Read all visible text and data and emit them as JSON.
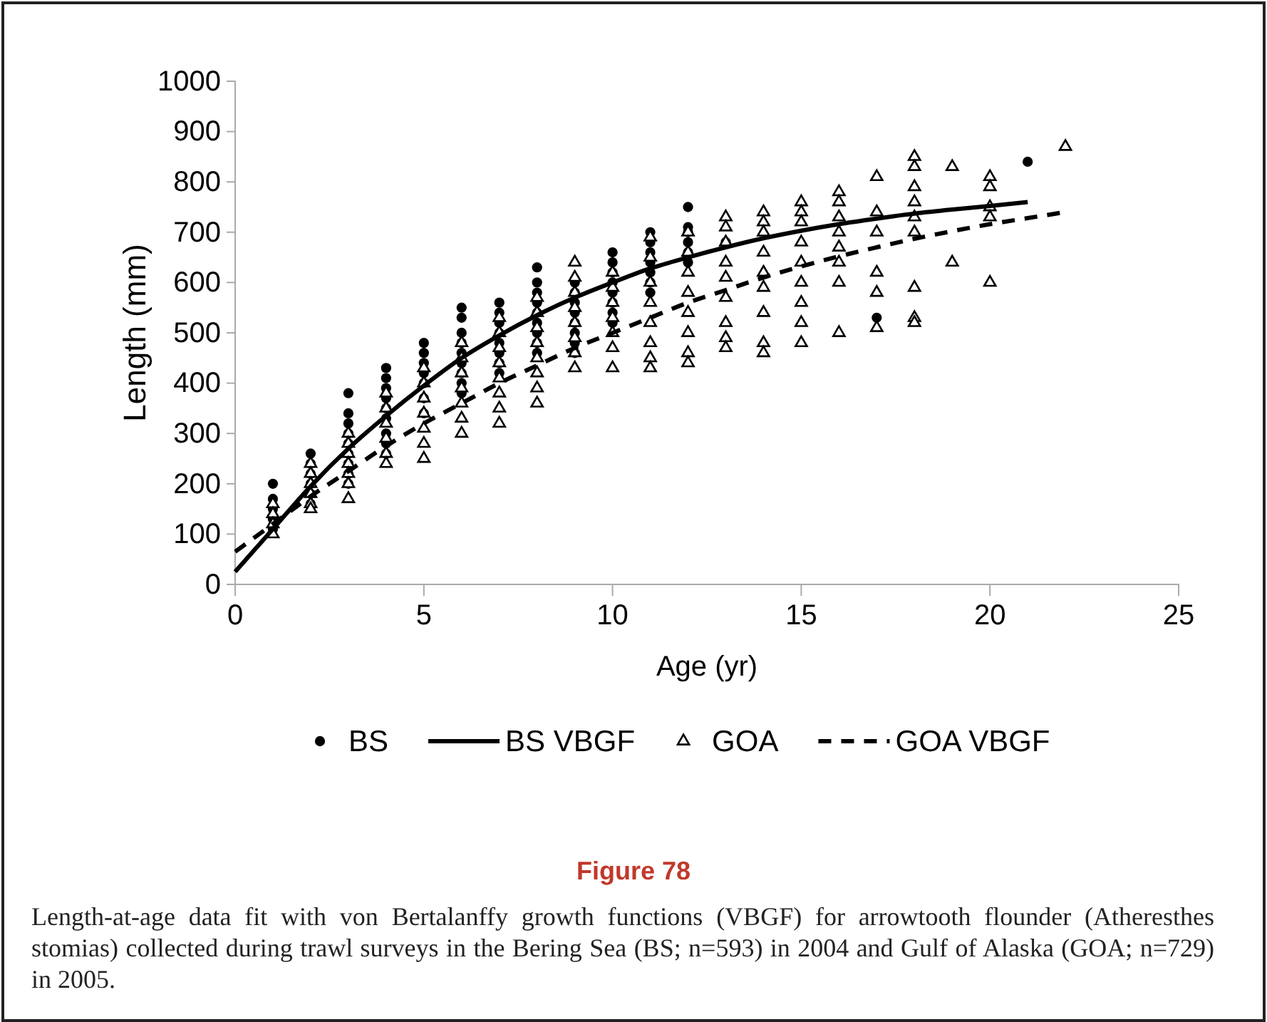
{
  "chart_data": {
    "type": "scatter",
    "title": "Figure 78",
    "xlabel": "Age (yr)",
    "ylabel": "Length (mm)",
    "annotations": [
      "Length-at-age data fit with von Bertalanffy growth functions (VBGF) for arrowtooth flounder (Atheresthes stomias) collected during trawl surveys in the Bering Sea (BS; n=593) in 2004 and Gulf of Alaska (GOA; n=729) in 2005."
    ],
    "xlim": [
      0,
      25
    ],
    "xticks": [
      0,
      5,
      10,
      15,
      20,
      25
    ],
    "ylim": [
      0,
      1000
    ],
    "yticks": [
      0,
      100,
      200,
      300,
      400,
      500,
      600,
      700,
      800,
      900,
      1000
    ],
    "grid": false,
    "legend": "bottom",
    "series": [
      {
        "name": "BS",
        "marker": "circle",
        "color": "#000000",
        "x": [
          1,
          1,
          1,
          1,
          1,
          2,
          2,
          2,
          2,
          2,
          2,
          3,
          3,
          3,
          3,
          3,
          3,
          3,
          3,
          3,
          4,
          4,
          4,
          4,
          4,
          4,
          4,
          4,
          4,
          5,
          5,
          5,
          5,
          5,
          5,
          5,
          6,
          6,
          6,
          6,
          6,
          6,
          6,
          6,
          6,
          7,
          7,
          7,
          7,
          7,
          7,
          7,
          7,
          8,
          8,
          8,
          8,
          8,
          8,
          8,
          8,
          8,
          9,
          9,
          9,
          9,
          9,
          9,
          9,
          9,
          10,
          10,
          10,
          10,
          10,
          10,
          10,
          10,
          11,
          11,
          11,
          11,
          11,
          11,
          11,
          12,
          12,
          12,
          12,
          12,
          12,
          13,
          17,
          21
        ],
        "values": [
          200,
          170,
          150,
          130,
          110,
          260,
          240,
          220,
          200,
          180,
          160,
          380,
          340,
          320,
          300,
          280,
          260,
          240,
          220,
          200,
          430,
          410,
          390,
          370,
          350,
          330,
          300,
          280,
          260,
          480,
          460,
          440,
          420,
          400,
          370,
          340,
          550,
          530,
          500,
          480,
          460,
          440,
          420,
          400,
          380,
          560,
          540,
          520,
          500,
          480,
          460,
          440,
          420,
          630,
          600,
          580,
          560,
          540,
          520,
          500,
          480,
          460,
          600,
          580,
          560,
          540,
          520,
          500,
          480,
          460,
          660,
          640,
          620,
          600,
          580,
          560,
          540,
          520,
          700,
          680,
          660,
          640,
          620,
          600,
          580,
          750,
          710,
          700,
          680,
          660,
          640,
          680,
          530,
          840
        ]
      },
      {
        "name": "BS VBGF",
        "type": "line",
        "marker": "none",
        "line_style": "solid",
        "color": "#000000",
        "x": [
          0,
          1,
          2,
          3,
          4,
          5,
          6,
          7,
          8,
          9,
          10,
          11,
          12,
          13,
          14,
          15,
          16,
          17,
          18,
          19,
          20,
          21
        ],
        "values": [
          25,
          110,
          195,
          270,
          335,
          395,
          450,
          495,
          535,
          570,
          600,
          628,
          650,
          670,
          688,
          703,
          716,
          727,
          737,
          745,
          752,
          760
        ]
      },
      {
        "name": "GOA",
        "marker": "triangle",
        "color": "#000000",
        "x": [
          1,
          1,
          1,
          1,
          2,
          2,
          2,
          2,
          2,
          2,
          3,
          3,
          3,
          3,
          3,
          3,
          3,
          4,
          4,
          4,
          4,
          4,
          4,
          5,
          5,
          5,
          5,
          5,
          5,
          5,
          6,
          6,
          6,
          6,
          6,
          6,
          6,
          7,
          7,
          7,
          7,
          7,
          7,
          7,
          7,
          8,
          8,
          8,
          8,
          8,
          8,
          8,
          8,
          9,
          9,
          9,
          9,
          9,
          9,
          9,
          9,
          10,
          10,
          10,
          10,
          10,
          10,
          10,
          11,
          11,
          11,
          11,
          11,
          11,
          11,
          11,
          12,
          12,
          12,
          12,
          12,
          12,
          12,
          12,
          13,
          13,
          13,
          13,
          13,
          13,
          13,
          13,
          13,
          14,
          14,
          14,
          14,
          14,
          14,
          14,
          14,
          14,
          15,
          15,
          15,
          15,
          15,
          15,
          15,
          15,
          15,
          16,
          16,
          16,
          16,
          16,
          16,
          16,
          16,
          17,
          17,
          17,
          17,
          17,
          17,
          18,
          18,
          18,
          18,
          18,
          18,
          18,
          18,
          18,
          19,
          19,
          20,
          20,
          20,
          20,
          20,
          22
        ],
        "values": [
          160,
          140,
          120,
          100,
          240,
          220,
          200,
          180,
          160,
          150,
          300,
          280,
          260,
          240,
          220,
          200,
          170,
          380,
          350,
          320,
          290,
          260,
          240,
          430,
          400,
          370,
          340,
          310,
          280,
          250,
          480,
          450,
          420,
          390,
          360,
          330,
          300,
          530,
          500,
          470,
          440,
          410,
          380,
          350,
          320,
          570,
          540,
          510,
          480,
          450,
          420,
          390,
          360,
          640,
          610,
          580,
          550,
          520,
          490,
          460,
          430,
          620,
          590,
          560,
          530,
          500,
          470,
          430,
          690,
          650,
          600,
          560,
          520,
          480,
          450,
          430,
          700,
          660,
          620,
          580,
          540,
          500,
          460,
          440,
          730,
          710,
          680,
          640,
          610,
          570,
          520,
          490,
          470,
          740,
          720,
          700,
          660,
          620,
          590,
          540,
          480,
          460,
          760,
          740,
          720,
          680,
          640,
          600,
          560,
          520,
          480,
          780,
          760,
          730,
          700,
          670,
          640,
          600,
          500,
          810,
          740,
          700,
          620,
          580,
          510,
          850,
          830,
          790,
          760,
          730,
          700,
          590,
          530,
          520,
          830,
          640,
          810,
          790,
          750,
          730,
          600,
          870
        ]
      },
      {
        "name": "GOA VBGF",
        "type": "line",
        "marker": "none",
        "line_style": "dashed",
        "color": "#000000",
        "x": [
          0,
          1,
          2,
          3,
          4,
          5,
          6,
          7,
          8,
          9,
          10,
          11,
          12,
          13,
          14,
          15,
          16,
          17,
          18,
          19,
          20,
          21,
          22
        ],
        "values": [
          65,
          120,
          175,
          225,
          275,
          320,
          360,
          400,
          435,
          470,
          500,
          530,
          560,
          585,
          610,
          632,
          652,
          670,
          687,
          702,
          716,
          728,
          740
        ]
      }
    ]
  }
}
